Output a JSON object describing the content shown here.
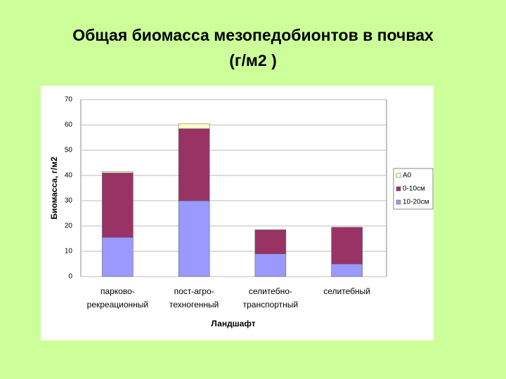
{
  "chart_data": {
    "type": "stacked-bar",
    "title": [
      "Общая биомасса мезопедобионтов в почвах",
      "(г/м2 )"
    ],
    "x_label": "Ландшафт",
    "y_label": "Биомасса, г/м2",
    "categories": [
      [
        "парково-",
        "рекреационный"
      ],
      [
        "пост-агро-",
        "техногенный"
      ],
      [
        "селитебно-",
        "транспортный"
      ],
      [
        "селитебный"
      ]
    ],
    "series": [
      {
        "name": "10-20см",
        "color": "#9999ff",
        "values": [
          15.5,
          30,
          9,
          5
        ]
      },
      {
        "name": "0-10см",
        "color": "#993366",
        "values": [
          25.5,
          28.5,
          9.5,
          14.5
        ]
      },
      {
        "name": "А0",
        "color": "#ffffcc",
        "values": [
          0.5,
          2,
          0,
          0
        ]
      }
    ],
    "ylim": [
      0,
      70
    ],
    "yticks": [
      0,
      10,
      20,
      30,
      40,
      50,
      60,
      70
    ],
    "grid": true,
    "legend": "right"
  }
}
